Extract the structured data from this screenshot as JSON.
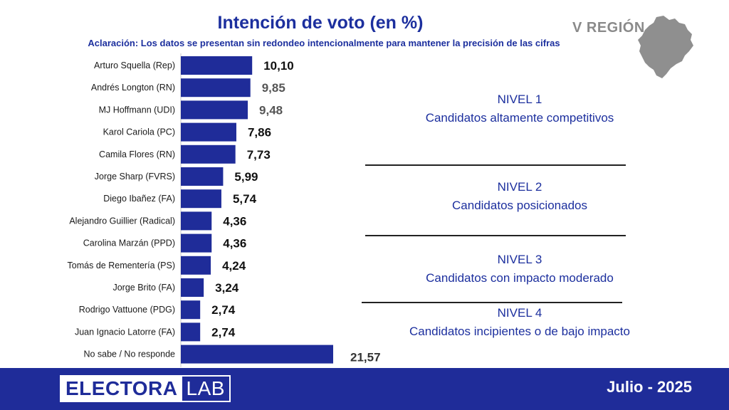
{
  "header": {
    "title": "Intención de voto  (en %)",
    "subtitle": "Aclaración: Los datos se presentan sin redondeo intencionalmente para mantener la precisión de las cifras",
    "region": "V REGIÓN"
  },
  "chart_data": {
    "type": "bar",
    "orientation": "horizontal",
    "categories": [
      "Arturo Squella (Rep)",
      "Andrés Longton (RN)",
      "MJ Hoffmann (UDI)",
      "Karol Cariola (PC)",
      "Camila Flores (RN)",
      "Jorge Sharp (FVRS)",
      "Diego Ibañez (FA)",
      "Alejandro Guillier (Radical)",
      "Carolina Marzán (PPD)",
      "Tomás de Rementería (PS)",
      "Jorge Brito (FA)",
      "Rodrigo Vattuone (PDG)",
      "Juan Ignacio Latorre (FA)",
      "No sabe / No responde"
    ],
    "values": [
      10.1,
      9.85,
      9.48,
      7.86,
      7.73,
      5.99,
      5.74,
      4.36,
      4.36,
      4.24,
      3.24,
      2.74,
      2.74,
      21.57
    ],
    "value_labels": [
      "10,10",
      "9,85",
      "9,48",
      "7,86",
      "7,73",
      "5,99",
      "5,74",
      "4,36",
      "4,36",
      "4,24",
      "3,24",
      "2,74",
      "2,74",
      "21,57"
    ],
    "label_colors": [
      "#111111",
      "#555555",
      "#555555",
      "#111111",
      "#111111",
      "#111111",
      "#111111",
      "#111111",
      "#111111",
      "#111111",
      "#111111",
      "#111111",
      "#111111",
      "#333333"
    ],
    "bar_color": "#1f2c99",
    "xlim": [
      0,
      21.57
    ]
  },
  "levels": [
    {
      "title": "NIVEL 1",
      "desc": "Candidatos altamente competitivos"
    },
    {
      "title": "NIVEL 2",
      "desc": "Candidatos posicionados"
    },
    {
      "title": "NIVEL 3",
      "desc": "Candidatos con impacto moderado"
    },
    {
      "title": "NIVEL 4",
      "desc": "Candidatos incipientes o de bajo impacto"
    }
  ],
  "footer": {
    "logo_left": "ELECTORA",
    "logo_right": "LAB",
    "date": "Julio - 2025",
    "color": "#1f2c99"
  }
}
